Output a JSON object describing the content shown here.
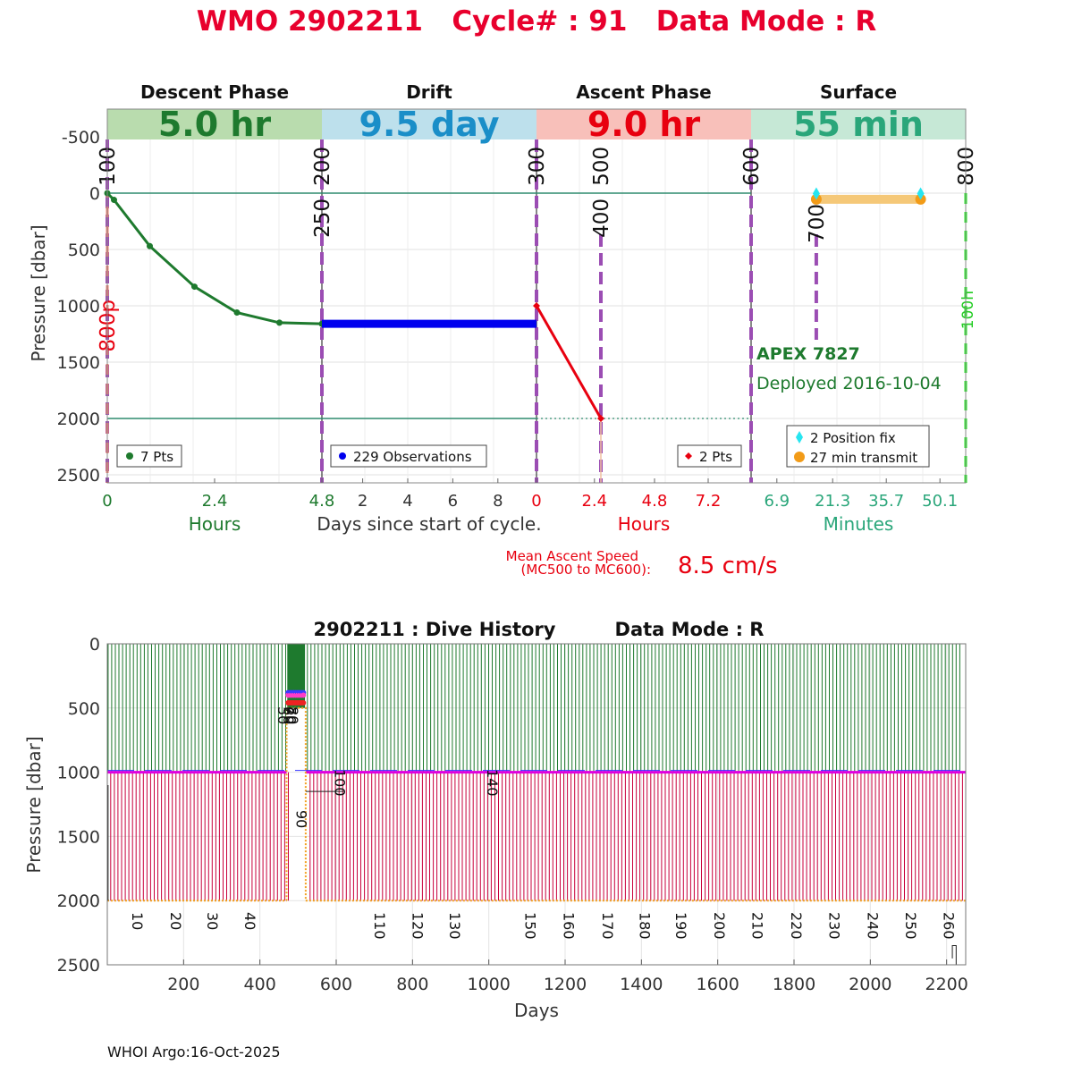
{
  "title": "WMO 2902211   Cycle# : 91   Data Mode : R",
  "footer": "WHOI Argo:16-Oct-2025",
  "colors": {
    "title_red": "#e8002d",
    "descent_green": "#1e7a2e",
    "drift_blue": "#1a8ec8",
    "ascent_red": "#e8000f",
    "surface_teal": "#2aa67a",
    "mc_purple": "#8e44ad"
  },
  "chart_data": [
    {
      "type": "line",
      "panel": "cycle",
      "ylabel": "Pressure [dbar]",
      "yticks": [
        "-500",
        "0",
        "500",
        "1000",
        "1500",
        "2000",
        "2500"
      ],
      "ylim": [
        2600,
        -750
      ],
      "xlabel_center": "Days since start of cycle.",
      "phases": [
        {
          "key": "descent",
          "name": "Descent Phase",
          "duration": "5.0 hr",
          "band_color": "#b9dcae",
          "text_color": "#1e7a2e",
          "tick_labels": [
            "0",
            "2.4",
            "4.8"
          ],
          "unit_label": "Hours",
          "legend": "7 Pts",
          "points": [
            [
              0,
              0
            ],
            [
              0.15,
              60
            ],
            [
              0.95,
              470
            ],
            [
              1.95,
              830
            ],
            [
              2.9,
              1060
            ],
            [
              3.85,
              1150
            ],
            [
              4.8,
              1160
            ]
          ]
        },
        {
          "key": "drift",
          "name": "Drift",
          "duration": "9.5 day",
          "band_color": "#bde0ec",
          "text_color": "#1a8ec8",
          "tick_labels": [
            "2",
            "4",
            "6",
            "8"
          ],
          "unit_label": "",
          "legend": "229 Observations",
          "drift_pressure": 1160
        },
        {
          "key": "ascent",
          "name": "Ascent Phase",
          "duration": "9.0 hr",
          "band_color": "#f8c0ba",
          "text_color": "#e8000f",
          "tick_labels": [
            "0",
            "2.4",
            "4.8",
            "7.2"
          ],
          "unit_label": "Hours",
          "legend": "2 Pts",
          "points": [
            [
              0,
              1000
            ],
            [
              2.7,
              2000
            ]
          ]
        },
        {
          "key": "surface",
          "name": "Surface",
          "duration": "55 min",
          "band_color": "#c6e8d6",
          "text_color": "#2aa67a",
          "tick_labels": [
            "6.9",
            "21.3",
            "35.7",
            "50.1"
          ],
          "unit_label": "Minutes",
          "legend_fix": "2 Position fix",
          "legend_transmit": "27 min transmit"
        }
      ],
      "mission_codes": [
        "100",
        "200",
        "250",
        "300",
        "400",
        "500",
        "600",
        "700",
        "800",
        "800p",
        "100h"
      ],
      "float_model": "APEX 7827",
      "deployed": "Deployed 2016-10-04",
      "ascent_speed_label_1": "Mean Ascent Speed",
      "ascent_speed_label_2": "(MC500 to MC600):",
      "ascent_speed_value": "8.5 cm/s"
    },
    {
      "type": "line",
      "panel": "history",
      "title_left": "2902211 : Dive History",
      "title_right": "Data Mode : R",
      "xlabel": "Days",
      "ylabel": "Pressure [dbar]",
      "xlim": [
        0,
        2250
      ],
      "ylim": [
        2500,
        0
      ],
      "xticks": [
        "200",
        "400",
        "600",
        "800",
        "1000",
        "1200",
        "1400",
        "1600",
        "1800",
        "2000",
        "2200"
      ],
      "yticks": [
        "0",
        "500",
        "1000",
        "1500",
        "2000",
        "2500"
      ],
      "cycle_labels": [
        {
          "label": "10",
          "day": 80
        },
        {
          "label": "20",
          "day": 180
        },
        {
          "label": "30",
          "day": 277
        },
        {
          "label": "40",
          "day": 375
        },
        {
          "label": "50",
          "day": 462
        },
        {
          "label": "60",
          "day": 476
        },
        {
          "label": "70",
          "day": 482
        },
        {
          "label": "80",
          "day": 488
        },
        {
          "label": "90",
          "day": 510
        },
        {
          "label": "100",
          "day": 610
        },
        {
          "label": "110",
          "day": 715
        },
        {
          "label": "120",
          "day": 815
        },
        {
          "label": "130",
          "day": 912
        },
        {
          "label": "140",
          "day": 1010
        },
        {
          "label": "150",
          "day": 1110
        },
        {
          "label": "160",
          "day": 1210
        },
        {
          "label": "170",
          "day": 1312
        },
        {
          "label": "180",
          "day": 1410
        },
        {
          "label": "190",
          "day": 1505
        },
        {
          "label": "200",
          "day": 1605
        },
        {
          "label": "210",
          "day": 1705
        },
        {
          "label": "220",
          "day": 1807
        },
        {
          "label": "230",
          "day": 1907
        },
        {
          "label": "240",
          "day": 2007
        },
        {
          "label": "250",
          "day": 2107
        },
        {
          "label": "260",
          "day": 2207
        }
      ],
      "park_pressure": 1000,
      "profile_pressure": 2000,
      "gap_start_day": 470,
      "gap_end_day": 520,
      "gap_min_pressure": 500
    }
  ]
}
